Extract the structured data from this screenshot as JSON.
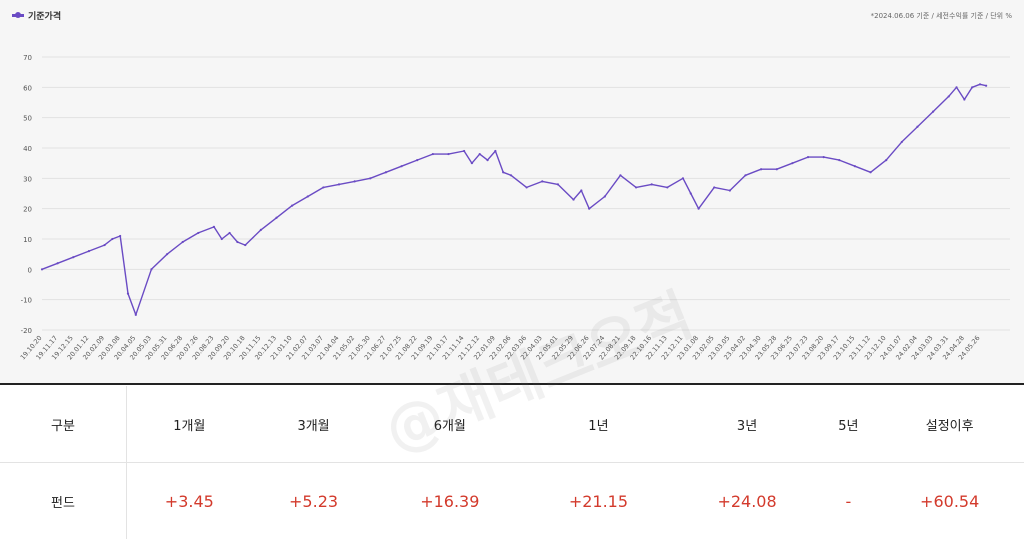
{
  "legend": {
    "label": "기준가격",
    "color": "#6a4bc4"
  },
  "note": "*2024.06.06 기준 / 세전수익률 기준 / 단위 %",
  "watermark": "@재테크오적",
  "chart_data": {
    "type": "line",
    "title": "",
    "xlabel": "",
    "ylabel": "",
    "ylim": [
      -20,
      70
    ],
    "yticks": [
      -20,
      -10,
      0,
      10,
      20,
      30,
      40,
      50,
      60,
      70
    ],
    "grid": true,
    "legend_position": "top-left",
    "x_tick_labels": [
      "19.10.20",
      "19.11.17",
      "19.12.15",
      "20.01.12",
      "20.02.09",
      "20.03.08",
      "20.04.05",
      "20.05.03",
      "20.05.31",
      "20.06.28",
      "20.07.26",
      "20.08.23",
      "20.09.20",
      "20.10.18",
      "20.11.15",
      "20.12.13",
      "21.01.10",
      "21.02.07",
      "21.03.07",
      "21.04.04",
      "21.05.02",
      "21.05.30",
      "21.06.27",
      "21.07.25",
      "21.08.22",
      "21.09.19",
      "21.10.17",
      "21.11.14",
      "21.12.12",
      "22.01.09",
      "22.02.06",
      "22.03.06",
      "22.04.03",
      "22.05.01",
      "22.05.29",
      "22.06.26",
      "22.07.24",
      "22.08.21",
      "22.09.18",
      "22.10.16",
      "22.11.13",
      "22.12.11",
      "23.01.08",
      "23.02.05",
      "23.03.05",
      "23.04.02",
      "23.04.30",
      "23.05.28",
      "23.06.25",
      "23.07.23",
      "23.08.20",
      "23.09.17",
      "23.10.15",
      "23.11.12",
      "23.12.10",
      "24.01.07",
      "24.02.04",
      "24.03.03",
      "24.03.31",
      "24.04.28",
      "24.05.26"
    ],
    "series": [
      {
        "color": "#6a4bc4",
        "x": [
          "19.10.20",
          "19.11.17",
          "19.12.15",
          "20.01.12",
          "20.02.09",
          "20.02.23",
          "20.03.08",
          "20.03.22",
          "20.04.05",
          "20.05.03",
          "20.05.31",
          "20.06.28",
          "20.07.26",
          "20.08.23",
          "20.09.06",
          "20.09.20",
          "20.10.04",
          "20.10.18",
          "20.11.15",
          "20.12.13",
          "21.01.10",
          "21.02.07",
          "21.03.07",
          "21.04.04",
          "21.05.02",
          "21.05.30",
          "21.06.27",
          "21.07.25",
          "21.08.22",
          "21.09.19",
          "21.10.17",
          "21.11.14",
          "21.11.28",
          "21.12.12",
          "21.12.26",
          "22.01.09",
          "22.01.23",
          "22.02.06",
          "22.03.06",
          "22.04.03",
          "22.05.01",
          "22.05.29",
          "22.06.12",
          "22.06.26",
          "22.07.24",
          "22.08.21",
          "22.09.18",
          "22.10.16",
          "22.11.13",
          "22.12.11",
          "22.12.25",
          "23.01.08",
          "23.02.05",
          "23.03.05",
          "23.04.02",
          "23.04.30",
          "23.05.28",
          "23.06.25",
          "23.07.23",
          "23.08.20",
          "23.09.17",
          "23.10.15",
          "23.11.12",
          "23.12.10",
          "24.01.07",
          "24.02.04",
          "24.03.03",
          "24.03.31",
          "24.04.14",
          "24.04.28",
          "24.05.12",
          "24.05.26",
          "24.06.06"
        ],
        "values": [
          0,
          2,
          4,
          6,
          8,
          10,
          11,
          -8,
          -15,
          0,
          5,
          9,
          12,
          14,
          10,
          12,
          9,
          8,
          13,
          17,
          21,
          24,
          27,
          28,
          29,
          30,
          32,
          34,
          36,
          38,
          38,
          39,
          35,
          38,
          36,
          39,
          32,
          31,
          27,
          29,
          28,
          23,
          26,
          20,
          24,
          31,
          27,
          28,
          27,
          30,
          25,
          20,
          27,
          26,
          31,
          33,
          33,
          35,
          37,
          37,
          36,
          34,
          32,
          36,
          42,
          47,
          52,
          57,
          60,
          56,
          60,
          61,
          60.54
        ]
      }
    ]
  },
  "table": {
    "headers": [
      "구분",
      "1개월",
      "3개월",
      "6개월",
      "1년",
      "3년",
      "5년",
      "설정이후"
    ],
    "rows": [
      {
        "label": "펀드",
        "values": [
          "+3.45",
          "+5.23",
          "+16.39",
          "+21.15",
          "+24.08",
          "-",
          "+60.54"
        ]
      }
    ]
  }
}
